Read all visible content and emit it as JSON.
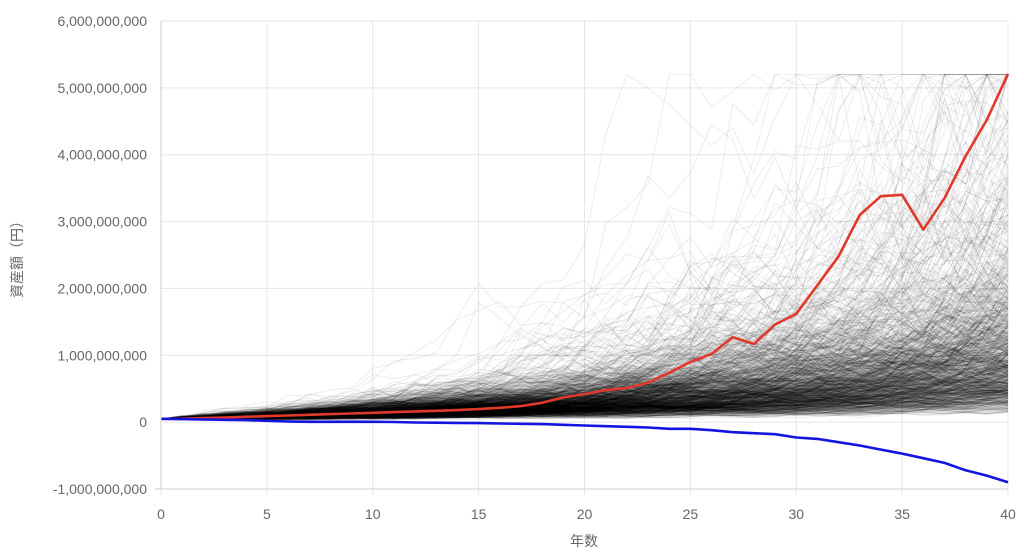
{
  "chart_data": {
    "type": "line",
    "xlabel": "年数",
    "ylabel": "資産額（円）",
    "xlim": [
      0,
      40
    ],
    "ylim": [
      -1000000000,
      6000000000
    ],
    "x_ticks": [
      "0",
      "5",
      "10",
      "15",
      "20",
      "25",
      "30",
      "35",
      "40"
    ],
    "y_ticks": [
      "6,000,000,000",
      "5,000,000,000",
      "4,000,000,000",
      "3,000,000,000",
      "2,000,000,000",
      "1,000,000,000",
      "0",
      "-1,000,000,000"
    ],
    "grid": true,
    "simulation_paths": 1000,
    "initial_value": 50000000,
    "x": [
      0,
      1,
      2,
      3,
      4,
      5,
      6,
      7,
      8,
      9,
      10,
      11,
      12,
      13,
      14,
      15,
      16,
      17,
      18,
      19,
      20,
      21,
      22,
      23,
      24,
      25,
      26,
      27,
      28,
      29,
      30,
      31,
      32,
      33,
      34,
      35,
      36,
      37,
      38,
      39,
      40
    ],
    "series": [
      {
        "color": "#e0392b",
        "values": [
          50000000,
          52000000,
          60000000,
          70000000,
          80000000,
          90000000,
          100000000,
          110000000,
          120000000,
          130000000,
          140000000,
          150000000,
          160000000,
          170000000,
          180000000,
          195000000,
          215000000,
          240000000,
          290000000,
          370000000,
          420000000,
          480000000,
          510000000,
          590000000,
          740000000,
          900000000,
          1020000000,
          1270000000,
          1170000000,
          1460000000,
          1620000000,
          2050000000,
          2480000000,
          3100000000,
          3380000000,
          3400000000,
          2880000000,
          3350000000,
          3980000000,
          4520000000,
          5210000000
        ]
      },
      {
        "color": "#1414e0",
        "values": [
          50000000,
          45000000,
          40000000,
          35000000,
          30000000,
          20000000,
          10000000,
          5000000,
          5000000,
          5000000,
          5000000,
          2000000,
          -5000000,
          -8000000,
          -12000000,
          -15000000,
          -20000000,
          -25000000,
          -30000000,
          -40000000,
          -50000000,
          -60000000,
          -70000000,
          -80000000,
          -100000000,
          -100000000,
          -120000000,
          -150000000,
          -165000000,
          -180000000,
          -230000000,
          -250000000,
          -300000000,
          -350000000,
          -410000000,
          -470000000,
          -540000000,
          -610000000,
          -720000000,
          -800000000,
          -900000000
        ]
      }
    ]
  }
}
